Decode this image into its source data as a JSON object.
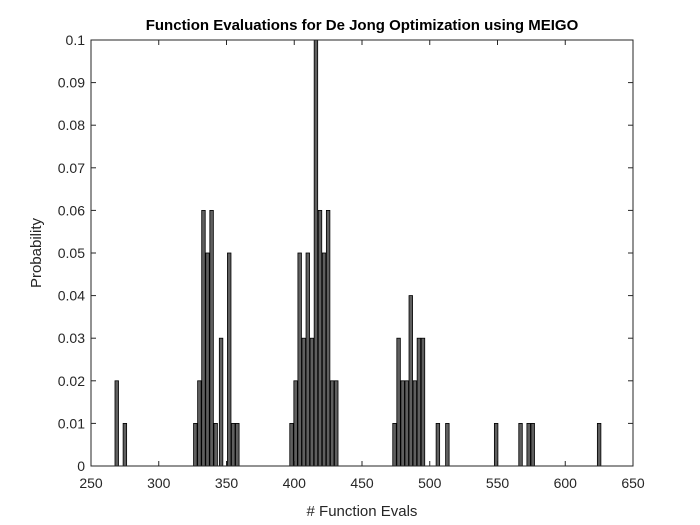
{
  "chart_data": {
    "type": "bar",
    "title": "Function Evaluations for De Jong Optimization using MEIGO",
    "xlabel": "# Function Evals",
    "ylabel": "Probability",
    "xlim": [
      250,
      650
    ],
    "ylim": [
      0,
      0.1
    ],
    "xticks": [
      "250",
      "300",
      "350",
      "400",
      "450",
      "500",
      "550",
      "600",
      "650"
    ],
    "yticks": [
      "0",
      "0.01",
      "0.02",
      "0.03",
      "0.04",
      "0.05",
      "0.06",
      "0.07",
      "0.08",
      "0.09",
      "0.1"
    ],
    "grid": false,
    "bin_width": 2.6,
    "bins": [
      {
        "x": 269,
        "y": 0.02
      },
      {
        "x": 275,
        "y": 0.01
      },
      {
        "x": 327,
        "y": 0.01
      },
      {
        "x": 330,
        "y": 0.02
      },
      {
        "x": 333,
        "y": 0.06
      },
      {
        "x": 336,
        "y": 0.05
      },
      {
        "x": 339,
        "y": 0.06
      },
      {
        "x": 342,
        "y": 0.01
      },
      {
        "x": 346,
        "y": 0.03
      },
      {
        "x": 352,
        "y": 0.05
      },
      {
        "x": 355,
        "y": 0.01
      },
      {
        "x": 358,
        "y": 0.01
      },
      {
        "x": 398,
        "y": 0.01
      },
      {
        "x": 401,
        "y": 0.02
      },
      {
        "x": 404,
        "y": 0.05
      },
      {
        "x": 407,
        "y": 0.03
      },
      {
        "x": 410,
        "y": 0.05
      },
      {
        "x": 413,
        "y": 0.03
      },
      {
        "x": 416,
        "y": 0.1
      },
      {
        "x": 419,
        "y": 0.06
      },
      {
        "x": 422,
        "y": 0.05
      },
      {
        "x": 425,
        "y": 0.06
      },
      {
        "x": 428,
        "y": 0.02
      },
      {
        "x": 431,
        "y": 0.02
      },
      {
        "x": 474,
        "y": 0.01
      },
      {
        "x": 477,
        "y": 0.03
      },
      {
        "x": 480,
        "y": 0.02
      },
      {
        "x": 483,
        "y": 0.02
      },
      {
        "x": 486,
        "y": 0.04
      },
      {
        "x": 489,
        "y": 0.02
      },
      {
        "x": 492,
        "y": 0.03
      },
      {
        "x": 495,
        "y": 0.03
      },
      {
        "x": 506,
        "y": 0.01
      },
      {
        "x": 513,
        "y": 0.01
      },
      {
        "x": 549,
        "y": 0.01
      },
      {
        "x": 567,
        "y": 0.01
      },
      {
        "x": 573,
        "y": 0.01
      },
      {
        "x": 576,
        "y": 0.01
      },
      {
        "x": 625,
        "y": 0.01
      }
    ],
    "colors": {
      "bar_fill": "#5f5f5f",
      "bar_stroke": "#000000",
      "axes": "#262626"
    }
  }
}
